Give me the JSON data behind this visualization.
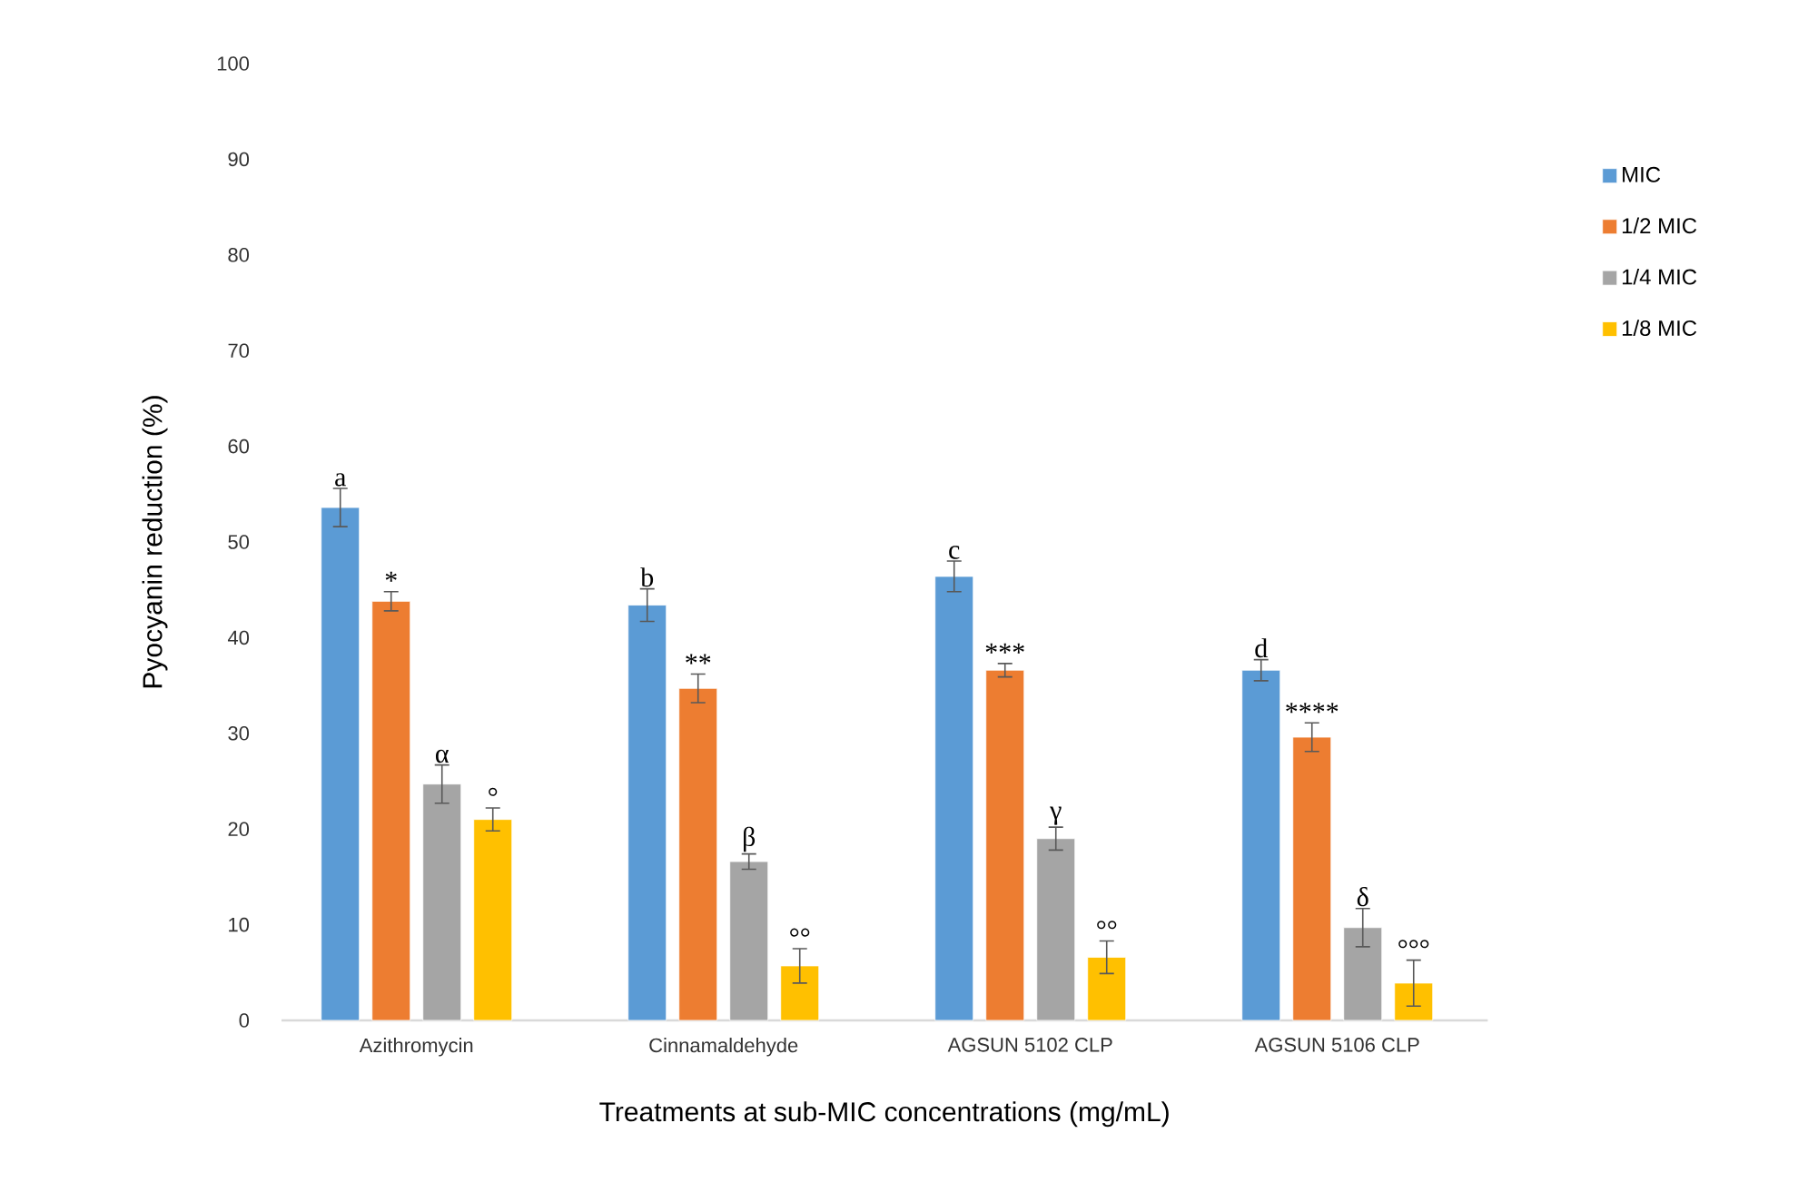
{
  "chart_data": {
    "type": "bar",
    "xlabel": "Treatments at sub-MIC concentrations (mg/mL)",
    "ylabel": "Pyocyanin reduction (%)",
    "categories": [
      "Azithromycin",
      "Cinnamaldehyde",
      "AGSUN 5102 CLP",
      "AGSUN 5106 CLP"
    ],
    "series": [
      {
        "name": "MIC",
        "color": "#5b9bd5",
        "values": [
          53.6,
          43.4,
          46.4,
          36.6
        ],
        "errors": [
          2,
          1.7,
          1.6,
          1.1
        ]
      },
      {
        "name": "1/2 MIC",
        "color": "#ed7d31",
        "values": [
          43.8,
          34.7,
          36.6,
          29.6
        ],
        "errors": [
          1,
          1.5,
          0.7,
          1.5
        ]
      },
      {
        "name": "1/4 MIC",
        "color": "#a5a5a5",
        "values": [
          24.7,
          16.6,
          19,
          9.7
        ],
        "errors": [
          2,
          0.8,
          1.2,
          2
        ]
      },
      {
        "name": "1/8 MIC",
        "color": "#ffc000",
        "values": [
          21,
          5.7,
          6.6,
          3.9
        ],
        "errors": [
          1.2,
          1.8,
          1.7,
          2.4
        ]
      }
    ],
    "ylim": [
      0,
      100
    ],
    "yticks": [
      0,
      10,
      20,
      30,
      40,
      50,
      60,
      70,
      80,
      90,
      100
    ],
    "grid": false,
    "legend": "right",
    "annotations": [
      "a",
      "*",
      "α",
      "°",
      "b",
      "**",
      "β",
      "°°",
      "c",
      "***",
      "γ",
      "°°",
      "d",
      "****",
      "δ",
      "°°°"
    ]
  }
}
